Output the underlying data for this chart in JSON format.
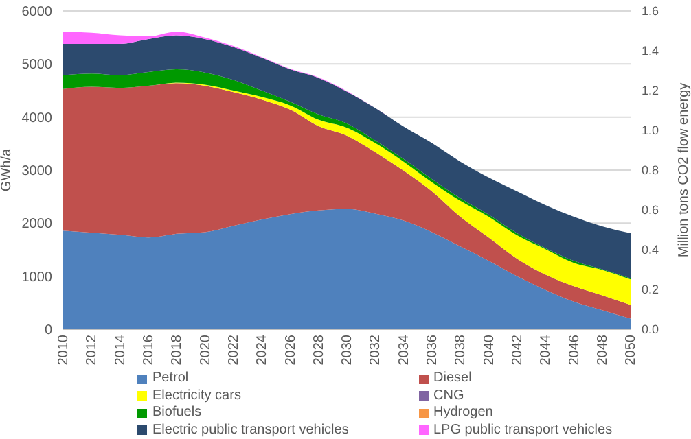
{
  "chart_data": {
    "type": "area",
    "stacked": true,
    "ylabel": "GWh/a",
    "y2label": "Million tons CO2 flow energy",
    "x": [
      2010,
      2012,
      2014,
      2016,
      2018,
      2020,
      2022,
      2024,
      2026,
      2028,
      2030,
      2032,
      2034,
      2036,
      2038,
      2040,
      2042,
      2044,
      2046,
      2048,
      2050
    ],
    "xlim": [
      2010,
      2050
    ],
    "xticks": [
      2010,
      2012,
      2014,
      2016,
      2018,
      2020,
      2022,
      2024,
      2026,
      2028,
      2030,
      2032,
      2034,
      2036,
      2038,
      2040,
      2042,
      2044,
      2046,
      2048,
      2050
    ],
    "ylim": [
      0,
      6000
    ],
    "yticks": [
      0,
      1000,
      2000,
      3000,
      4000,
      5000,
      6000
    ],
    "y2lim": [
      0,
      1.6
    ],
    "y2ticks": [
      {
        "value": 0,
        "label": "0.0"
      },
      {
        "value": 0.2,
        "label": "0.2"
      },
      {
        "value": 0.4,
        "label": "0.4"
      },
      {
        "value": 0.6,
        "label": "0.6"
      },
      {
        "value": 0.8,
        "label": "0.8"
      },
      {
        "value": 1,
        "label": "1.0"
      },
      {
        "value": 1.2,
        "label": "1.2"
      },
      {
        "value": 1.4,
        "label": "1.4"
      },
      {
        "value": 1.6,
        "label": "1.6"
      }
    ],
    "grid": "y",
    "legend": "bottom",
    "series": [
      {
        "name": "Petrol",
        "color": "#4f81bd",
        "values": [
          1860,
          1820,
          1780,
          1730,
          1800,
          1830,
          1950,
          2070,
          2170,
          2240,
          2270,
          2180,
          2050,
          1830,
          1560,
          1290,
          1000,
          740,
          520,
          360,
          200
        ]
      },
      {
        "name": "Diesel",
        "color": "#c0504d",
        "values": [
          2670,
          2750,
          2770,
          2860,
          2840,
          2760,
          2520,
          2260,
          1970,
          1590,
          1380,
          1160,
          940,
          770,
          560,
          440,
          330,
          290,
          290,
          280,
          260
        ]
      },
      {
        "name": "Electricity cars",
        "color": "#ffff00",
        "values": [
          0,
          0,
          0,
          0,
          10,
          20,
          30,
          50,
          80,
          120,
          150,
          170,
          170,
          170,
          300,
          390,
          440,
          480,
          440,
          480,
          480
        ]
      },
      {
        "name": "CNG",
        "color": "#8064a2",
        "values": [
          null,
          null,
          null,
          null,
          null,
          null,
          null,
          null,
          null,
          null,
          null,
          null,
          null,
          null,
          null,
          null,
          null,
          null,
          null,
          null,
          null
        ]
      },
      {
        "name": "Biofuels",
        "color": "#009900",
        "values": [
          260,
          250,
          240,
          260,
          250,
          230,
          200,
          120,
          70,
          100,
          80,
          50,
          50,
          60,
          50,
          40,
          40,
          20,
          40,
          10,
          20
        ]
      },
      {
        "name": "Hydrogen",
        "color": "#f79646",
        "values": [
          null,
          null,
          null,
          null,
          null,
          null,
          null,
          null,
          null,
          null,
          null,
          null,
          null,
          null,
          null,
          null,
          null,
          null,
          null,
          null,
          null
        ]
      },
      {
        "name": "Electric public transport vehicles",
        "color": "#2c4a6e",
        "values": [
          590,
          560,
          590,
          620,
          640,
          630,
          620,
          620,
          610,
          690,
          600,
          610,
          610,
          680,
          690,
          700,
          790,
          810,
          830,
          810,
          850
        ]
      },
      {
        "name": "LPG public transport vehicles",
        "color": "#ff66ff",
        "values": [
          230,
          210,
          160,
          50,
          70,
          30,
          20,
          10,
          10,
          10,
          10,
          0,
          0,
          0,
          0,
          0,
          0,
          0,
          0,
          0,
          0
        ]
      }
    ]
  }
}
